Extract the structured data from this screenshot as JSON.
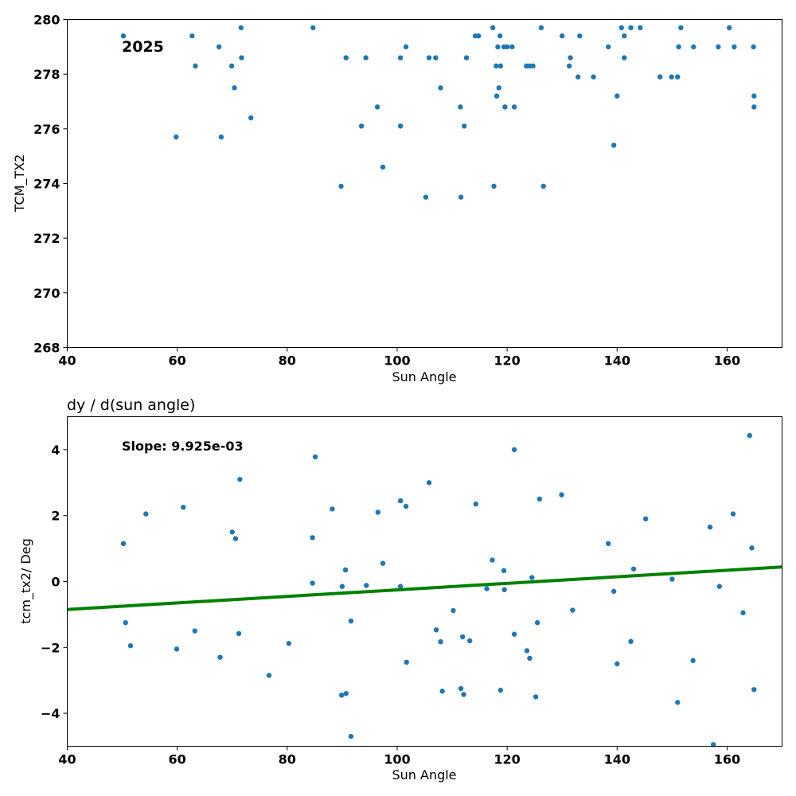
{
  "chart_data": [
    {
      "type": "scatter",
      "title": "",
      "annotation": "2025",
      "xlabel": "Sun Angle",
      "ylabel": "TCM_TX2",
      "xlim": [
        40,
        170
      ],
      "ylim": [
        268,
        280
      ],
      "xticks": [
        "40",
        "60",
        "80",
        "100",
        "120",
        "140",
        "160"
      ],
      "yticks": [
        "268",
        "270",
        "272",
        "274",
        "276",
        "278",
        "280"
      ],
      "grid": false,
      "color": "#1f77b4",
      "points": [
        [
          50.2,
          279.4
        ],
        [
          59.8,
          275.7
        ],
        [
          62.7,
          279.4
        ],
        [
          63.3,
          278.3
        ],
        [
          67.6,
          279.0
        ],
        [
          68.0,
          275.7
        ],
        [
          69.9,
          278.3
        ],
        [
          70.4,
          277.5
        ],
        [
          71.6,
          279.7
        ],
        [
          71.7,
          278.6
        ],
        [
          73.4,
          276.4
        ],
        [
          84.7,
          279.7
        ],
        [
          89.8,
          273.9
        ],
        [
          90.7,
          278.6
        ],
        [
          93.5,
          276.1
        ],
        [
          94.3,
          278.6
        ],
        [
          96.4,
          276.8
        ],
        [
          97.4,
          274.6
        ],
        [
          100.6,
          278.6
        ],
        [
          100.6,
          276.1
        ],
        [
          101.6,
          279.0
        ],
        [
          105.2,
          273.5
        ],
        [
          105.8,
          278.6
        ],
        [
          107.0,
          278.6
        ],
        [
          107.9,
          277.5
        ],
        [
          111.5,
          276.8
        ],
        [
          111.6,
          273.5
        ],
        [
          112.2,
          276.1
        ],
        [
          112.6,
          278.6
        ],
        [
          114.2,
          279.4
        ],
        [
          114.8,
          279.4
        ],
        [
          117.4,
          279.7
        ],
        [
          117.6,
          273.9
        ],
        [
          118.0,
          278.3
        ],
        [
          118.1,
          277.2
        ],
        [
          118.3,
          279.0
        ],
        [
          118.5,
          277.5
        ],
        [
          118.7,
          279.4
        ],
        [
          118.8,
          278.3
        ],
        [
          119.4,
          279.0
        ],
        [
          119.6,
          276.8
        ],
        [
          120.0,
          279.0
        ],
        [
          120.9,
          279.0
        ],
        [
          121.3,
          276.8
        ],
        [
          123.5,
          278.3
        ],
        [
          124.1,
          278.3
        ],
        [
          124.7,
          278.3
        ],
        [
          126.2,
          279.7
        ],
        [
          126.6,
          273.9
        ],
        [
          130.0,
          279.4
        ],
        [
          131.3,
          278.3
        ],
        [
          131.5,
          278.6
        ],
        [
          132.9,
          277.9
        ],
        [
          133.2,
          279.4
        ],
        [
          135.7,
          277.9
        ],
        [
          138.4,
          279.0
        ],
        [
          139.4,
          275.4
        ],
        [
          140.0,
          277.2
        ],
        [
          140.8,
          279.7
        ],
        [
          141.3,
          279.4
        ],
        [
          141.3,
          278.6
        ],
        [
          142.5,
          279.7
        ],
        [
          144.2,
          279.7
        ],
        [
          147.8,
          277.9
        ],
        [
          149.9,
          277.9
        ],
        [
          151.0,
          277.9
        ],
        [
          151.2,
          279.0
        ],
        [
          151.6,
          279.7
        ],
        [
          153.9,
          279.0
        ],
        [
          158.4,
          279.0
        ],
        [
          160.4,
          279.7
        ],
        [
          161.3,
          279.0
        ],
        [
          164.8,
          279.0
        ],
        [
          164.9,
          277.2
        ],
        [
          164.9,
          276.8
        ]
      ]
    },
    {
      "type": "scatter",
      "title": "dy / d(sun angle)",
      "annotation": "Slope: 9.925e-03",
      "xlabel": "Sun Angle",
      "ylabel": "tcm_tx2/ Deg",
      "xlim": [
        40,
        170
      ],
      "ylim": [
        -5,
        5
      ],
      "xticks": [
        "40",
        "60",
        "80",
        "100",
        "120",
        "140",
        "160"
      ],
      "yticks": [
        "−4",
        "−2",
        "0",
        "2",
        "4"
      ],
      "ytick_values": [
        -4,
        -2,
        0,
        2,
        4
      ],
      "grid": false,
      "color": "#1f77b4",
      "fit_line": {
        "x": [
          40,
          170
        ],
        "y": [
          -0.85,
          0.44
        ],
        "color": "#008000"
      },
      "points": [
        [
          50.2,
          1.15
        ],
        [
          50.6,
          -1.25
        ],
        [
          51.5,
          -1.95
        ],
        [
          54.3,
          2.05
        ],
        [
          59.9,
          -2.05
        ],
        [
          61.1,
          2.25
        ],
        [
          63.2,
          -1.5
        ],
        [
          67.8,
          -2.3
        ],
        [
          70.0,
          1.5
        ],
        [
          70.6,
          1.3
        ],
        [
          71.2,
          -1.58
        ],
        [
          71.4,
          3.1
        ],
        [
          76.7,
          -2.85
        ],
        [
          80.3,
          -1.88
        ],
        [
          84.6,
          1.33
        ],
        [
          84.6,
          -0.05
        ],
        [
          85.1,
          3.78
        ],
        [
          88.2,
          2.2
        ],
        [
          90.0,
          -0.15
        ],
        [
          89.9,
          -3.45
        ],
        [
          90.6,
          0.35
        ],
        [
          90.7,
          -3.4
        ],
        [
          91.6,
          -1.2
        ],
        [
          91.6,
          -4.7
        ],
        [
          94.4,
          -0.12
        ],
        [
          96.5,
          2.1
        ],
        [
          97.4,
          0.55
        ],
        [
          100.6,
          2.45
        ],
        [
          100.6,
          -0.15
        ],
        [
          101.6,
          2.28
        ],
        [
          101.7,
          -2.45
        ],
        [
          105.8,
          3.0
        ],
        [
          107.1,
          -1.47
        ],
        [
          107.9,
          -1.83
        ],
        [
          108.2,
          -3.33
        ],
        [
          110.2,
          -0.88
        ],
        [
          111.6,
          -3.25
        ],
        [
          111.9,
          -1.68
        ],
        [
          112.1,
          -3.43
        ],
        [
          113.2,
          -1.8
        ],
        [
          114.3,
          2.35
        ],
        [
          116.3,
          -0.22
        ],
        [
          117.3,
          0.65
        ],
        [
          118.8,
          -3.3
        ],
        [
          119.4,
          0.33
        ],
        [
          119.5,
          -0.25
        ],
        [
          121.3,
          -1.6
        ],
        [
          121.3,
          4.0
        ],
        [
          123.6,
          -2.1
        ],
        [
          124.1,
          -2.33
        ],
        [
          124.5,
          0.12
        ],
        [
          125.2,
          -3.5
        ],
        [
          125.5,
          -1.25
        ],
        [
          125.9,
          2.5
        ],
        [
          129.9,
          2.63
        ],
        [
          131.9,
          -0.87
        ],
        [
          138.4,
          1.15
        ],
        [
          139.4,
          -0.3
        ],
        [
          140.0,
          -2.5
        ],
        [
          142.5,
          -1.82
        ],
        [
          143.0,
          0.38
        ],
        [
          145.2,
          1.9
        ],
        [
          150.0,
          0.07
        ],
        [
          151.0,
          -3.67
        ],
        [
          153.8,
          -2.4
        ],
        [
          156.9,
          1.65
        ],
        [
          157.5,
          -4.95
        ],
        [
          158.6,
          -0.15
        ],
        [
          161.1,
          2.05
        ],
        [
          162.9,
          -0.95
        ],
        [
          164.1,
          4.43
        ],
        [
          164.5,
          1.02
        ],
        [
          164.9,
          -3.28
        ]
      ]
    }
  ]
}
